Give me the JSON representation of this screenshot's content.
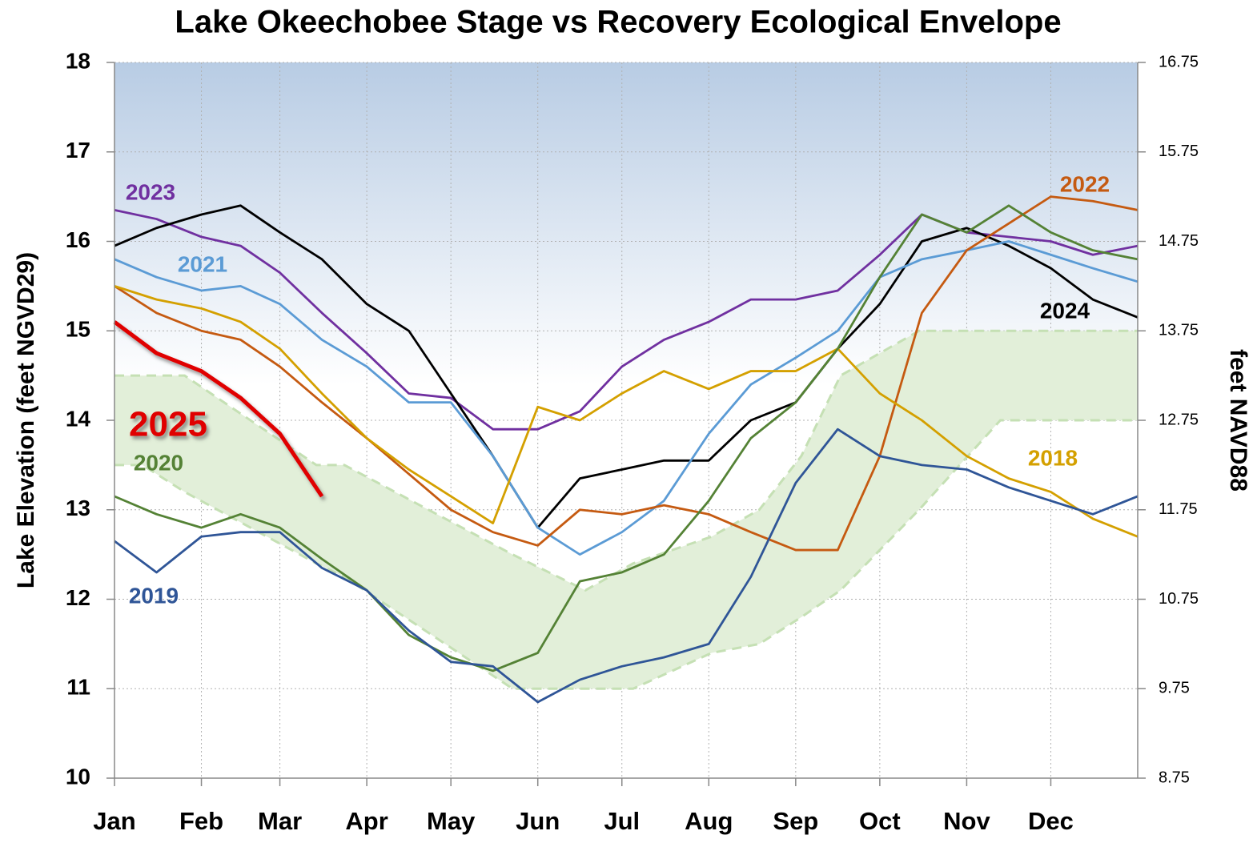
{
  "chart_data": {
    "type": "line",
    "title": "Lake Okeechobee Stage vs Recovery Ecological Envelope",
    "y_label": "Lake Elevation (feet NGVD29)",
    "y2_label": "feet NAVD88",
    "xlim": [
      0,
      365
    ],
    "xticks": [
      {
        "value": 0,
        "label": "Jan"
      },
      {
        "value": 31,
        "label": "Feb"
      },
      {
        "value": 59,
        "label": "Mar"
      },
      {
        "value": 90,
        "label": "Apr"
      },
      {
        "value": 120,
        "label": "May"
      },
      {
        "value": 151,
        "label": "Jun"
      },
      {
        "value": 181,
        "label": "Jul"
      },
      {
        "value": 212,
        "label": "Aug"
      },
      {
        "value": 243,
        "label": "Sep"
      },
      {
        "value": 273,
        "label": "Oct"
      },
      {
        "value": 304,
        "label": "Nov"
      },
      {
        "value": 334,
        "label": "Dec"
      }
    ],
    "ylim": [
      10,
      18
    ],
    "yticks": [
      10,
      11,
      12,
      13,
      14,
      15,
      16,
      17,
      18
    ],
    "y2lim": [
      8.75,
      16.75
    ],
    "y2ticks": [
      8.75,
      9.75,
      10.75,
      11.75,
      12.75,
      13.75,
      14.75,
      15.75,
      16.75
    ],
    "grid": true,
    "envelope": {
      "color": "#e2efd9",
      "edge_color": "#c5e0b4",
      "x": [
        0,
        10,
        25,
        72,
        82,
        142,
        168,
        185,
        213,
        230,
        245,
        259,
        287,
        316,
        365
      ],
      "upper": [
        14.5,
        14.5,
        14.5,
        13.5,
        13.5,
        12.5,
        12.1,
        12.4,
        12.7,
        13.0,
        13.6,
        14.5,
        15.0,
        15.0,
        15.0
      ],
      "lower": [
        13.5,
        13.5,
        13.2,
        12.4,
        12.25,
        11.0,
        11.0,
        11.0,
        11.4,
        11.5,
        11.8,
        12.1,
        13.0,
        14.0,
        14.0
      ]
    },
    "x": [
      0,
      15,
      31,
      45,
      59,
      74,
      90,
      105,
      120,
      135,
      151,
      166,
      181,
      196,
      212,
      227,
      243,
      258,
      273,
      288,
      304,
      319,
      334,
      349,
      365
    ],
    "series": [
      {
        "name": "2023",
        "color": "#7030a0",
        "values": [
          16.35,
          16.25,
          16.05,
          15.95,
          15.65,
          15.2,
          14.75,
          14.3,
          14.25,
          13.9,
          13.9,
          14.1,
          14.6,
          14.9,
          15.1,
          15.35,
          15.35,
          15.45,
          15.85,
          16.3,
          16.1,
          16.05,
          16.0,
          15.85,
          15.95
        ]
      },
      {
        "name": "2024",
        "color": "#000000",
        "values": [
          15.95,
          16.15,
          16.3,
          16.4,
          16.1,
          15.8,
          15.3,
          15.0,
          14.3,
          13.6,
          12.8,
          13.35,
          13.45,
          13.55,
          13.55,
          14.0,
          14.2,
          14.8,
          15.3,
          16.0,
          16.15,
          15.95,
          15.7,
          15.35,
          15.15
        ]
      },
      {
        "name": "2021",
        "color": "#5b9bd5",
        "values": [
          15.8,
          15.6,
          15.45,
          15.5,
          15.3,
          14.9,
          14.6,
          14.2,
          14.2,
          13.6,
          12.8,
          12.5,
          12.75,
          13.1,
          13.85,
          14.4,
          14.7,
          15.0,
          15.6,
          15.8,
          15.9,
          16.0,
          15.85,
          15.7,
          15.55
        ]
      },
      {
        "name": "2022",
        "color": "#c55a11",
        "values": [
          15.5,
          15.2,
          15.0,
          14.9,
          14.6,
          14.2,
          13.8,
          13.4,
          13.0,
          12.75,
          12.6,
          13.0,
          12.95,
          13.05,
          12.95,
          12.75,
          12.55,
          12.55,
          13.6,
          15.2,
          15.9,
          16.2,
          16.5,
          16.45,
          16.35
        ]
      },
      {
        "name": "2018",
        "color": "#d4a000",
        "values": [
          15.5,
          15.35,
          15.25,
          15.1,
          14.8,
          14.3,
          13.8,
          13.45,
          13.15,
          12.85,
          14.15,
          14.0,
          14.3,
          14.55,
          14.35,
          14.55,
          14.55,
          14.8,
          14.3,
          14.0,
          13.6,
          13.35,
          13.2,
          12.9,
          12.7
        ]
      },
      {
        "name": "2020",
        "color": "#548235",
        "values": [
          13.15,
          12.95,
          12.8,
          12.95,
          12.8,
          12.45,
          12.1,
          11.6,
          11.35,
          11.2,
          11.4,
          12.2,
          12.3,
          12.5,
          13.1,
          13.8,
          14.2,
          14.8,
          15.6,
          16.3,
          16.1,
          16.4,
          16.1,
          15.9,
          15.8
        ]
      },
      {
        "name": "2019",
        "color": "#2f5597",
        "values": [
          12.65,
          12.3,
          12.7,
          12.75,
          12.75,
          12.35,
          12.1,
          11.65,
          11.3,
          11.25,
          10.85,
          11.1,
          11.25,
          11.35,
          11.5,
          12.25,
          13.3,
          13.9,
          13.6,
          13.5,
          13.45,
          13.25,
          13.1,
          12.95,
          13.15
        ]
      },
      {
        "name": "2025",
        "color": "#e00000",
        "values": [
          15.1,
          14.75,
          14.55,
          14.25,
          13.85,
          13.15,
          null,
          null,
          null,
          null,
          null,
          null,
          null,
          null,
          null,
          null,
          null,
          null,
          null,
          null,
          null,
          null,
          null,
          null,
          null
        ]
      }
    ]
  }
}
